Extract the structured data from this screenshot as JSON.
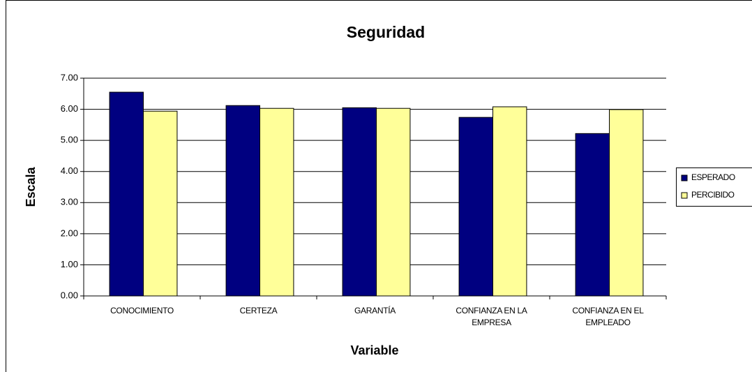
{
  "chart_data": {
    "type": "bar",
    "title": "Seguridad",
    "x_label": "Variable",
    "y_label": "Escala",
    "categories": [
      "CONOCIMIENTO",
      "CERTEZA",
      "GARANTÍA",
      "CONFIANZA EN LA EMPRESA",
      "CONFIANZA EN EL EMPLEADO"
    ],
    "series": [
      {
        "name": "ESPERADO",
        "color": "#000080",
        "values": [
          6.55,
          6.12,
          6.05,
          5.74,
          5.22
        ]
      },
      {
        "name": "PERCIBIDO",
        "color": "#ffff99",
        "values": [
          5.94,
          6.03,
          6.03,
          6.08,
          5.99
        ]
      }
    ],
    "ylim": [
      0,
      7
    ],
    "yticks": [
      {
        "value": 0,
        "label": "0.00"
      },
      {
        "value": 1,
        "label": "1.00"
      },
      {
        "value": 2,
        "label": "2.00"
      },
      {
        "value": 3,
        "label": "3.00"
      },
      {
        "value": 4,
        "label": "4.00"
      },
      {
        "value": 5,
        "label": "5.00"
      },
      {
        "value": 6,
        "label": "6.00"
      },
      {
        "value": 7,
        "label": "7.00"
      }
    ],
    "grid": true,
    "legend": "right"
  }
}
